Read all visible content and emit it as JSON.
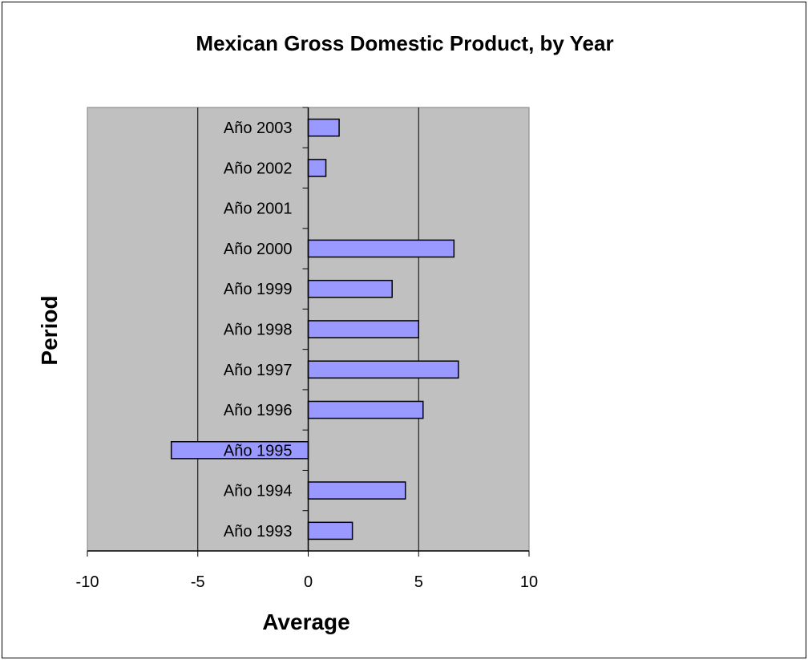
{
  "chart_data": {
    "type": "bar",
    "orientation": "horizontal",
    "title": "Mexican Gross Domestic Product, by Year",
    "xlabel": "Average",
    "ylabel": "Period",
    "categories": [
      "Año 1993",
      "Año 1994",
      "Año 1995",
      "Año 1996",
      "Año 1997",
      "Año 1998",
      "Año 1999",
      "Año 2000",
      "Año 2001",
      "Año 2002",
      "Año 2003"
    ],
    "values": [
      2.0,
      4.4,
      -6.2,
      5.2,
      6.8,
      5.0,
      3.8,
      6.6,
      0.0,
      0.8,
      1.4
    ],
    "xlim": [
      -10,
      10
    ],
    "xticks": [
      -10,
      -5,
      0,
      5,
      10
    ],
    "grid": "vertical",
    "legend": "none",
    "colors": {
      "bar_fill": "#9999ff",
      "bar_stroke": "#000000",
      "plot_bg": "#c0c0c0"
    }
  }
}
